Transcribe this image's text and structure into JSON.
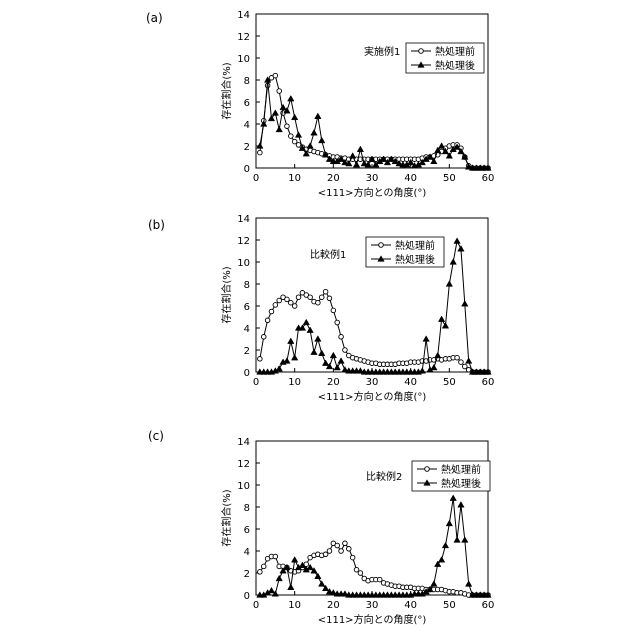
{
  "chart_data": [
    {
      "panel_label": "(a)",
      "type": "line",
      "xlabel": "<111>方向との角度(°)",
      "ylabel": "存在割合(%)",
      "xlim": [
        0,
        60
      ],
      "ylim": [
        0,
        14
      ],
      "x_ticks": [
        0,
        10,
        20,
        30,
        40,
        50,
        60
      ],
      "y_ticks": [
        0,
        2,
        4,
        6,
        8,
        10,
        12,
        14
      ],
      "grid": false,
      "legend_position": "top-right",
      "legend_label": "実施例1",
      "series": [
        {
          "name": "熱処理前",
          "marker": "open-circle",
          "x": [
            1,
            2,
            3,
            4,
            5,
            6,
            7,
            8,
            9,
            10,
            11,
            12,
            13,
            14,
            15,
            16,
            17,
            18,
            19,
            20,
            21,
            22,
            23,
            24,
            25,
            26,
            27,
            28,
            29,
            30,
            31,
            32,
            33,
            34,
            35,
            36,
            37,
            38,
            39,
            40,
            41,
            42,
            43,
            44,
            45,
            46,
            47,
            48,
            49,
            50,
            51,
            52,
            53,
            54,
            55,
            56,
            57,
            58,
            59,
            60
          ],
          "values": [
            1.4,
            4.3,
            7.5,
            8.2,
            8.4,
            7.0,
            5.0,
            3.8,
            2.9,
            2.4,
            2.1,
            1.9,
            1.7,
            1.6,
            1.5,
            1.4,
            1.3,
            1.2,
            1.1,
            1.0,
            1.0,
            0.9,
            0.9,
            0.8,
            0.8,
            0.8,
            0.8,
            0.8,
            0.8,
            0.8,
            0.8,
            0.8,
            0.8,
            0.8,
            0.8,
            0.8,
            0.8,
            0.8,
            0.8,
            0.8,
            0.8,
            0.8,
            0.9,
            1.0,
            1.0,
            1.1,
            1.2,
            1.5,
            1.8,
            2.0,
            2.1,
            2.1,
            1.8,
            1.0,
            0.2,
            0.0,
            0.0,
            0.0,
            0.0,
            0.0
          ]
        },
        {
          "name": "熱処理後",
          "marker": "filled-triangle",
          "x": [
            1,
            2,
            3,
            4,
            5,
            6,
            7,
            8,
            9,
            10,
            11,
            12,
            13,
            14,
            15,
            16,
            17,
            18,
            19,
            20,
            21,
            22,
            23,
            24,
            25,
            26,
            27,
            28,
            29,
            30,
            31,
            32,
            33,
            34,
            35,
            36,
            37,
            38,
            39,
            40,
            41,
            42,
            43,
            44,
            45,
            46,
            47,
            48,
            49,
            50,
            51,
            52,
            53,
            54,
            55,
            56,
            57,
            58,
            59,
            60
          ],
          "values": [
            2.0,
            4.0,
            8.0,
            4.5,
            5.0,
            3.5,
            5.5,
            5.2,
            6.3,
            4.6,
            3.0,
            1.8,
            1.3,
            2.0,
            3.2,
            4.7,
            2.5,
            1.2,
            0.8,
            0.6,
            0.6,
            0.8,
            0.5,
            0.4,
            1.1,
            0.3,
            1.7,
            0.4,
            0.3,
            0.8,
            0.3,
            0.6,
            0.8,
            0.5,
            0.8,
            0.6,
            0.4,
            0.3,
            0.3,
            0.5,
            0.2,
            0.3,
            0.5,
            0.8,
            1.0,
            0.6,
            1.6,
            2.0,
            1.5,
            1.1,
            1.7,
            1.9,
            1.5,
            1.0,
            0.1,
            0.0,
            0.0,
            0.0,
            0.0,
            0.0
          ]
        }
      ]
    },
    {
      "panel_label": "(b)",
      "type": "line",
      "xlabel": "<111>方向との角度(°)",
      "ylabel": "存在割合(%)",
      "xlim": [
        0,
        60
      ],
      "ylim": [
        0,
        14
      ],
      "x_ticks": [
        0,
        10,
        20,
        30,
        40,
        50,
        60
      ],
      "y_ticks": [
        0,
        2,
        4,
        6,
        8,
        10,
        12,
        14
      ],
      "grid": false,
      "legend_position": "top-center",
      "legend_label": "比較例1",
      "series": [
        {
          "name": "熱処理前",
          "marker": "open-circle",
          "x": [
            1,
            2,
            3,
            4,
            5,
            6,
            7,
            8,
            9,
            10,
            11,
            12,
            13,
            14,
            15,
            16,
            17,
            18,
            19,
            20,
            21,
            22,
            23,
            24,
            25,
            26,
            27,
            28,
            29,
            30,
            31,
            32,
            33,
            34,
            35,
            36,
            37,
            38,
            39,
            40,
            41,
            42,
            43,
            44,
            45,
            46,
            47,
            48,
            49,
            50,
            51,
            52,
            53,
            54,
            55,
            56,
            57,
            58,
            59,
            60
          ],
          "values": [
            1.2,
            3.2,
            4.7,
            5.5,
            6.1,
            6.5,
            6.8,
            6.6,
            6.3,
            6.0,
            6.8,
            7.2,
            7.0,
            6.8,
            6.4,
            6.3,
            6.8,
            7.3,
            6.7,
            5.6,
            4.5,
            3.2,
            2.0,
            1.5,
            1.3,
            1.2,
            1.1,
            1.0,
            0.9,
            0.8,
            0.8,
            0.7,
            0.7,
            0.7,
            0.7,
            0.7,
            0.8,
            0.8,
            0.8,
            0.9,
            0.9,
            0.9,
            1.0,
            1.0,
            1.1,
            1.1,
            1.2,
            1.1,
            1.2,
            1.2,
            1.3,
            1.3,
            0.9,
            0.5,
            0.2,
            0.0,
            0.0,
            0.0,
            0.0,
            0.0
          ]
        },
        {
          "name": "熱処理後",
          "marker": "filled-triangle",
          "x": [
            1,
            2,
            3,
            4,
            5,
            6,
            7,
            8,
            9,
            10,
            11,
            12,
            13,
            14,
            15,
            16,
            17,
            18,
            19,
            20,
            21,
            22,
            23,
            24,
            25,
            26,
            27,
            28,
            29,
            30,
            31,
            32,
            33,
            34,
            35,
            36,
            37,
            38,
            39,
            40,
            41,
            42,
            43,
            44,
            45,
            46,
            47,
            48,
            49,
            50,
            51,
            52,
            53,
            54,
            55,
            56,
            57,
            58,
            59,
            60
          ],
          "values": [
            0.0,
            0.0,
            0.0,
            0.0,
            0.1,
            0.3,
            0.9,
            1.0,
            2.8,
            1.3,
            4.0,
            4.0,
            4.5,
            3.8,
            1.8,
            3.0,
            1.7,
            0.8,
            0.5,
            1.5,
            0.4,
            1.0,
            0.2,
            0.1,
            0.1,
            0.1,
            0.1,
            0.0,
            0.0,
            0.0,
            0.0,
            0.0,
            0.0,
            0.0,
            0.0,
            0.0,
            0.0,
            0.0,
            0.0,
            0.0,
            0.0,
            0.0,
            0.1,
            3.0,
            0.2,
            0.4,
            1.5,
            4.8,
            4.2,
            8.0,
            10.0,
            11.9,
            11.2,
            6.2,
            1.0,
            0.0,
            0.0,
            0.0,
            0.0,
            0.0
          ]
        }
      ]
    },
    {
      "panel_label": "(c)",
      "type": "line",
      "xlabel": "<111>方向との角度(°)",
      "ylabel": "存在割合(%)",
      "xlim": [
        0,
        60
      ],
      "ylim": [
        0,
        14
      ],
      "x_ticks": [
        0,
        10,
        20,
        30,
        40,
        50,
        60
      ],
      "y_ticks": [
        0,
        2,
        4,
        6,
        8,
        10,
        12,
        14
      ],
      "grid": false,
      "legend_position": "top-right",
      "legend_label": "比較例2",
      "series": [
        {
          "name": "熱処理前",
          "marker": "open-circle",
          "x": [
            1,
            2,
            3,
            4,
            5,
            6,
            7,
            8,
            9,
            10,
            11,
            12,
            13,
            14,
            15,
            16,
            17,
            18,
            19,
            20,
            21,
            22,
            23,
            24,
            25,
            26,
            27,
            28,
            29,
            30,
            31,
            32,
            33,
            34,
            35,
            36,
            37,
            38,
            39,
            40,
            41,
            42,
            43,
            44,
            45,
            46,
            47,
            48,
            49,
            50,
            51,
            52,
            53,
            54,
            55,
            56,
            57,
            58,
            59,
            60
          ],
          "values": [
            2.1,
            2.6,
            3.3,
            3.5,
            3.5,
            2.6,
            2.6,
            2.5,
            2.2,
            2.1,
            2.2,
            2.5,
            2.8,
            3.4,
            3.6,
            3.7,
            3.6,
            3.7,
            4.0,
            4.7,
            4.5,
            4.0,
            4.7,
            4.2,
            3.4,
            2.3,
            2.0,
            1.5,
            1.3,
            1.4,
            1.4,
            1.4,
            1.1,
            1.0,
            0.9,
            0.8,
            0.8,
            0.7,
            0.7,
            0.7,
            0.6,
            0.6,
            0.6,
            0.5,
            0.5,
            0.5,
            0.5,
            0.5,
            0.4,
            0.3,
            0.3,
            0.2,
            0.2,
            0.1,
            0.0,
            0.0,
            0.0,
            0.0,
            0.0,
            0.0
          ]
        },
        {
          "name": "熱処理後",
          "marker": "filled-triangle",
          "x": [
            1,
            2,
            3,
            4,
            5,
            6,
            7,
            8,
            9,
            10,
            11,
            12,
            13,
            14,
            15,
            16,
            17,
            18,
            19,
            20,
            21,
            22,
            23,
            24,
            25,
            26,
            27,
            28,
            29,
            30,
            31,
            32,
            33,
            34,
            35,
            36,
            37,
            38,
            39,
            40,
            41,
            42,
            43,
            44,
            45,
            46,
            47,
            48,
            49,
            50,
            51,
            52,
            53,
            54,
            55,
            56,
            57,
            58,
            59,
            60
          ],
          "values": [
            0.0,
            0.0,
            0.2,
            0.4,
            0.1,
            1.5,
            2.2,
            2.5,
            0.7,
            3.2,
            2.5,
            2.7,
            2.3,
            2.5,
            2.2,
            1.7,
            1.0,
            0.6,
            0.3,
            0.2,
            0.1,
            0.1,
            0.1,
            0.0,
            0.0,
            0.0,
            0.0,
            0.0,
            0.0,
            0.0,
            0.0,
            0.0,
            0.0,
            0.0,
            0.0,
            0.0,
            0.0,
            0.0,
            0.0,
            0.0,
            0.1,
            0.1,
            0.1,
            0.3,
            0.5,
            1.0,
            2.8,
            3.2,
            4.5,
            6.5,
            8.8,
            5.0,
            8.2,
            5.0,
            1.0,
            0.0,
            0.0,
            0.0,
            0.0,
            0.0
          ]
        }
      ]
    }
  ]
}
